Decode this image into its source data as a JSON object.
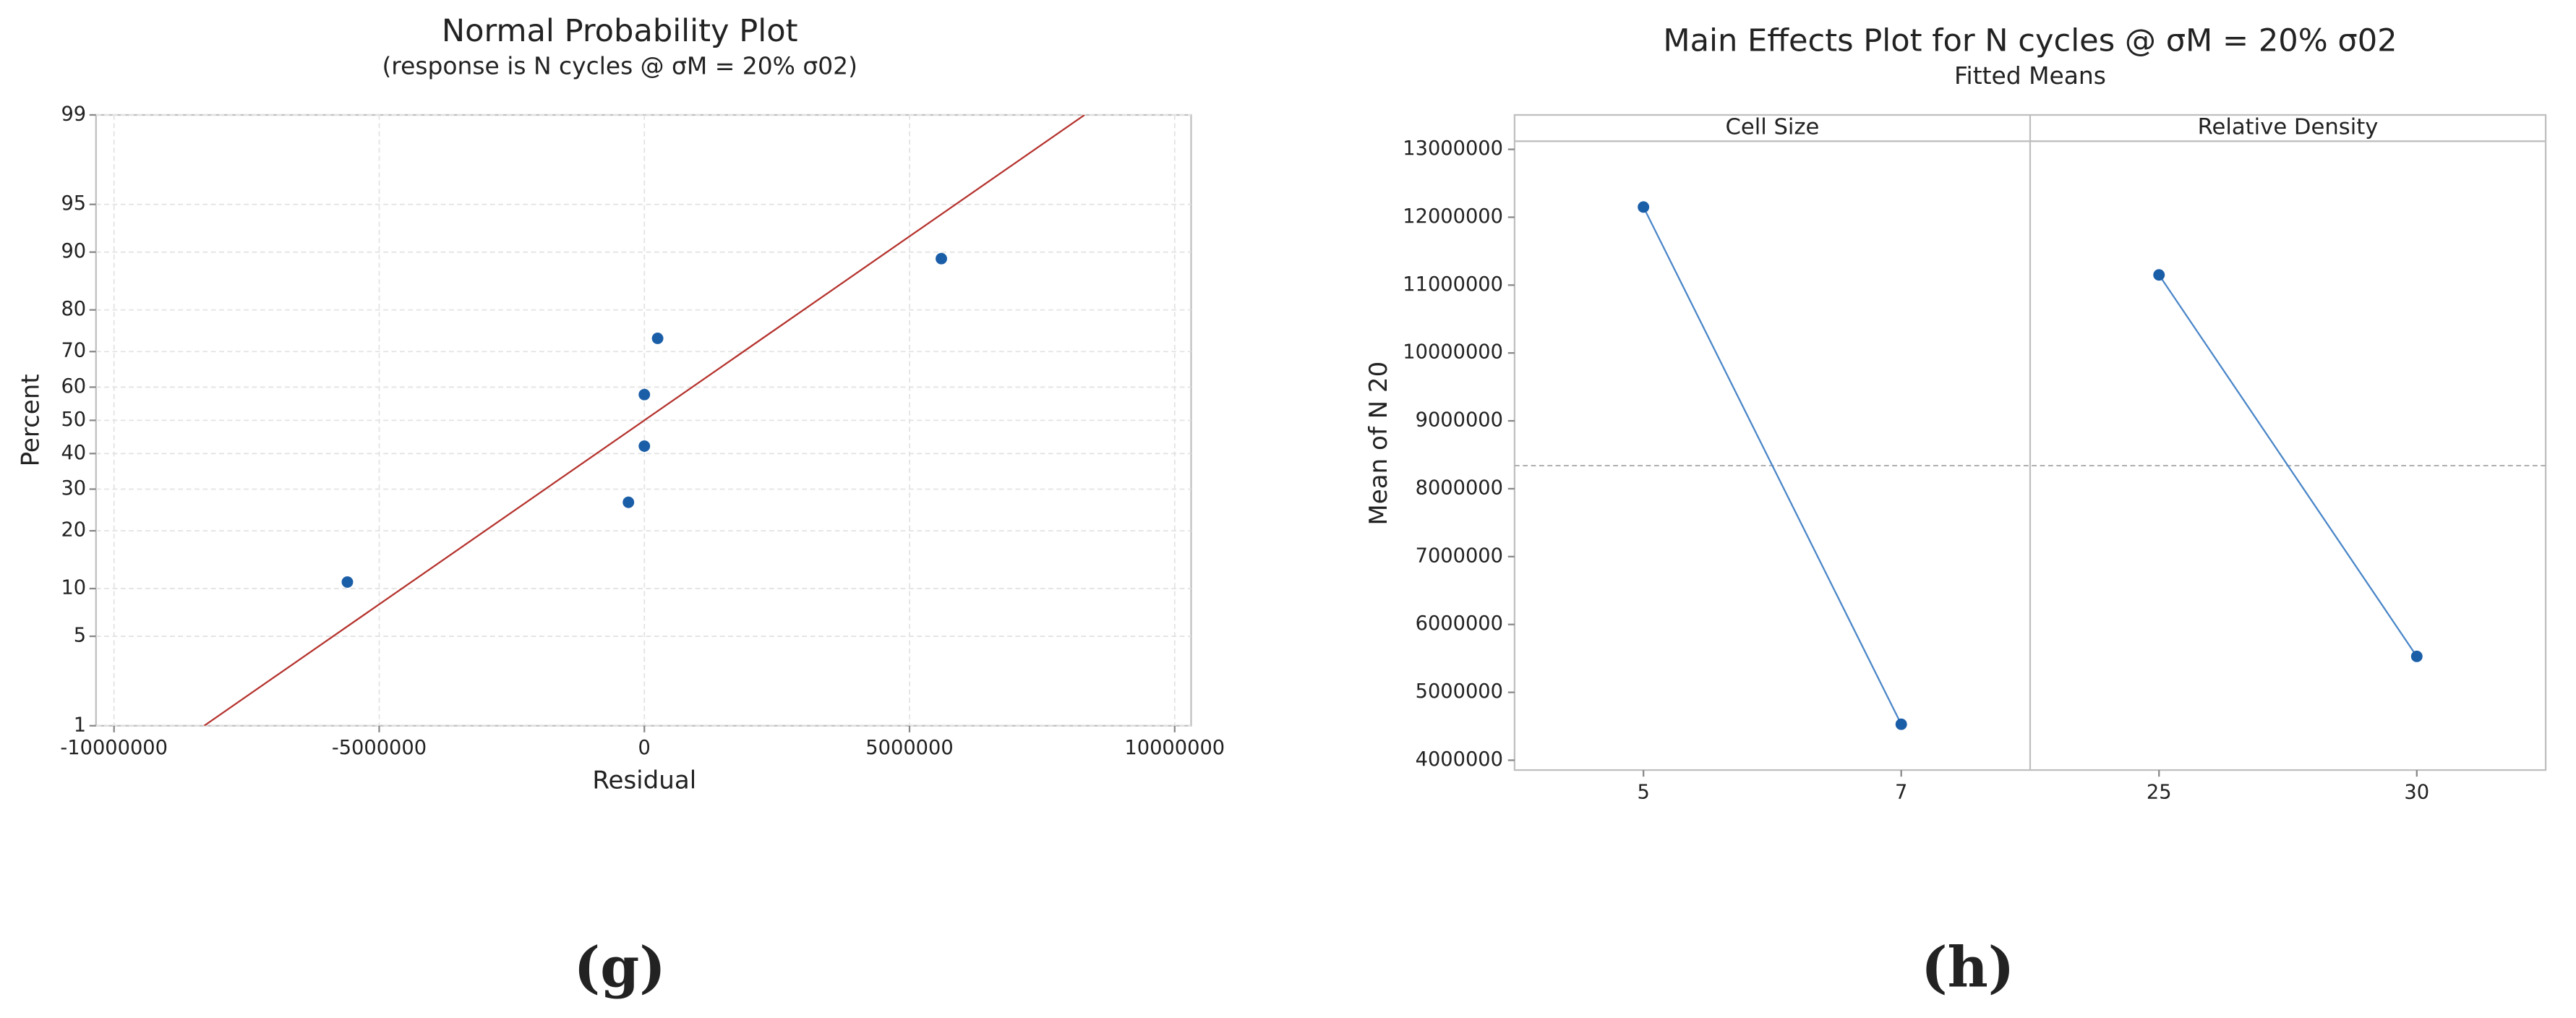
{
  "chart_data": [
    {
      "type": "scatter",
      "title": "Normal Probability Plot",
      "subtitle": "(response is N cycles @ σM = 20% σ02)",
      "x_label": "Residual",
      "y_label": "Percent",
      "yscale": "probability",
      "x": [
        -5600000,
        -300000,
        0,
        0,
        250000,
        5600000
      ],
      "values": [
        10.9,
        26.6,
        42.2,
        57.8,
        73.4,
        89.1
      ],
      "color": "#1b5ea8",
      "fit_line": {
        "x": [
          -8300000,
          8300000
        ],
        "values": [
          1,
          99
        ],
        "color": "#b5332e"
      },
      "xlim": [
        -10340000,
        10310000
      ],
      "xticks": [
        -10000000,
        -5000000,
        0,
        5000000,
        10000000
      ],
      "ylim": [
        1,
        99
      ],
      "yticks": [
        1,
        5,
        10,
        20,
        30,
        40,
        50,
        60,
        70,
        80,
        90,
        95,
        99
      ],
      "grid": true
    },
    {
      "type": "main_effects",
      "title": "Main Effects Plot for N cycles @ σM = 20% σ02",
      "subtitle": "Fitted Means",
      "y_label": "Mean of N 20",
      "color": "#1b5ea8",
      "line_color": "#4a86c8",
      "panels": [
        {
          "title": "Cell Size",
          "categories": [
            "5",
            "7"
          ],
          "values": [
            12150000,
            4530000
          ]
        },
        {
          "title": "Relative Density",
          "categories": [
            "25",
            "30"
          ],
          "values": [
            11150000,
            5530000
          ]
        }
      ],
      "reference_line": 8340000,
      "ylim": [
        3855000,
        13120000
      ],
      "yticks": [
        4000000,
        5000000,
        6000000,
        7000000,
        8000000,
        9000000,
        10000000,
        11000000,
        12000000,
        13000000
      ]
    }
  ],
  "captions": [
    "(g)",
    "(h)"
  ]
}
